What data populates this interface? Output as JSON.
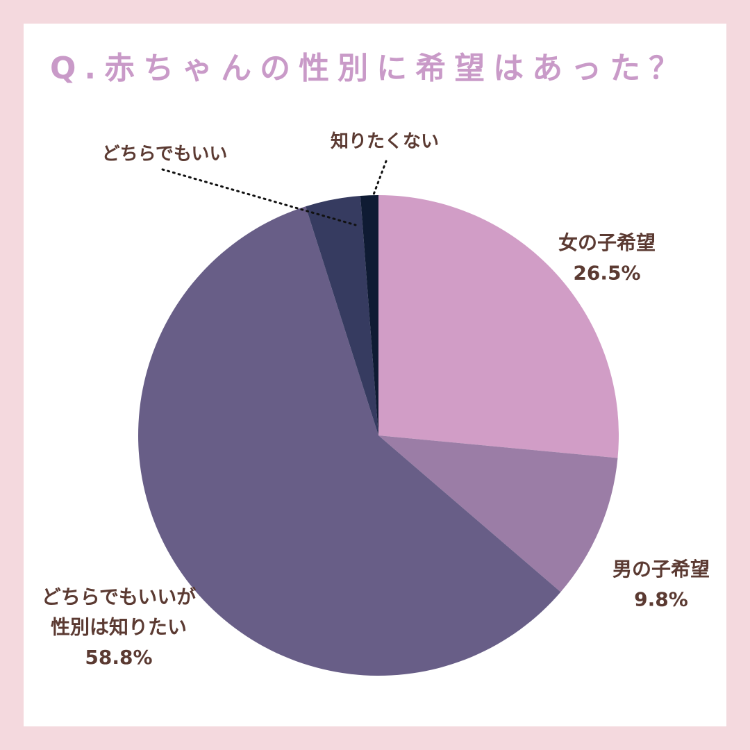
{
  "title": "Q.赤ちゃんの性別に希望はあった？",
  "chart_data": {
    "type": "pie",
    "title": "Q.赤ちゃんの性別に希望はあった？",
    "slices": [
      {
        "label_lines": [
          "女の子希望"
        ],
        "value": 26.5,
        "value_text": "26.5%",
        "color": "#d19dc6"
      },
      {
        "label_lines": [
          "男の子希望"
        ],
        "value": 9.8,
        "value_text": "9.8%",
        "color": "#9b7da6"
      },
      {
        "label_lines": [
          "どちらでもいいが",
          "性別は知りたい"
        ],
        "value": 58.8,
        "value_text": "58.8%",
        "color": "#685e87"
      },
      {
        "label_lines": [
          "どちらでもいい"
        ],
        "value": 3.7,
        "value_text": "",
        "color": "#363b60"
      },
      {
        "label_lines": [
          "知りたくない"
        ],
        "value": 1.2,
        "value_text": "",
        "color": "#0f1b33"
      }
    ]
  }
}
